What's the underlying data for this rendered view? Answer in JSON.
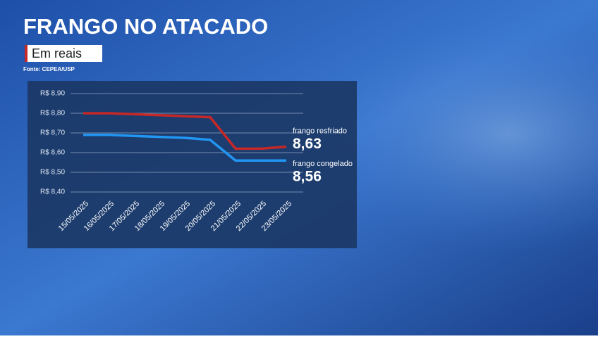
{
  "chart_data": {
    "type": "line",
    "title": "FRANGO NO ATACADO",
    "subtitle": "Em reais",
    "source": "Fonte: CEPEA/USP",
    "categories": [
      "15/05/2025",
      "16/05/2025",
      "17/05/2025",
      "18/05/2025",
      "19/05/2025",
      "20/05/2025",
      "21/05/2025",
      "22/05/2025",
      "23/05/2025"
    ],
    "series": [
      {
        "name": "frango resfriado",
        "color": "#c62828",
        "values": [
          8.8,
          8.8,
          8.795,
          8.79,
          8.785,
          8.78,
          8.62,
          8.62,
          8.63
        ],
        "value_labels": [
          null,
          null,
          null,
          null,
          null,
          null,
          null,
          null,
          "8,63"
        ]
      },
      {
        "name": "frango congelado",
        "color": "#2196f3",
        "values": [
          8.69,
          8.69,
          8.685,
          8.68,
          8.675,
          8.665,
          8.56,
          8.56,
          8.56
        ],
        "value_labels": [
          null,
          null,
          null,
          null,
          null,
          null,
          null,
          null,
          "8,56"
        ]
      }
    ],
    "ylim": [
      8.4,
      8.9
    ],
    "yticks": [
      {
        "value": 8.4,
        "label": "R$ 8,40"
      },
      {
        "value": 8.5,
        "label": "R$ 8,50"
      },
      {
        "value": 8.6,
        "label": "R$ 8,60"
      },
      {
        "value": 8.7,
        "label": "R$ 8,70"
      },
      {
        "value": 8.8,
        "label": "R$ 8,80"
      },
      {
        "value": 8.9,
        "label": "R$ 8,90"
      }
    ],
    "grid": true
  }
}
